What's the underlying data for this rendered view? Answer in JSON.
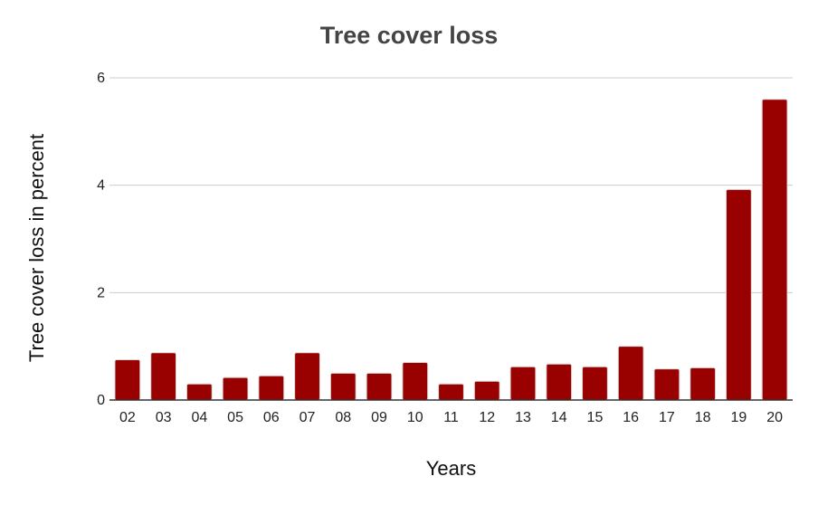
{
  "chart_data": {
    "type": "bar",
    "title": "Tree cover loss",
    "xlabel": "Years",
    "ylabel": "Tree cover loss in percent",
    "categories": [
      "02",
      "03",
      "04",
      "05",
      "06",
      "07",
      "08",
      "09",
      "10",
      "11",
      "12",
      "13",
      "14",
      "15",
      "16",
      "17",
      "18",
      "19",
      "20"
    ],
    "values": [
      0.75,
      0.88,
      0.3,
      0.42,
      0.45,
      0.88,
      0.5,
      0.5,
      0.7,
      0.3,
      0.35,
      0.62,
      0.67,
      0.62,
      1.0,
      0.58,
      0.6,
      3.92,
      5.6
    ],
    "ylim": [
      0,
      6
    ],
    "yticks": [
      0,
      2,
      4,
      6
    ],
    "grid": true,
    "legend": "none",
    "bar_color": "#990000",
    "grid_color": "#cccccc"
  }
}
